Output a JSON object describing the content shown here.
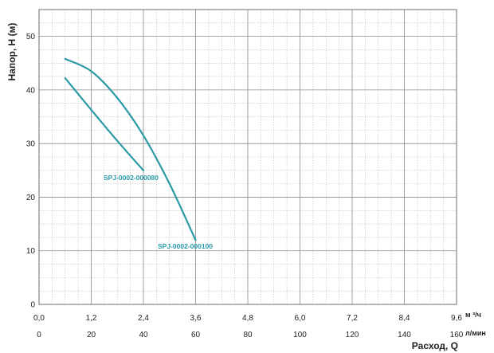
{
  "chart_data": {
    "type": "line",
    "ylabel": "Напор, Н (м)",
    "xlabel": "Расход, Q",
    "x_unit_primary": "м ³/ч",
    "x_unit_secondary": "л/мин",
    "xlim": [
      0,
      9.6
    ],
    "ylim": [
      0,
      55
    ],
    "x_ticks": [
      "0,0",
      "1,2",
      "2,4",
      "3,6",
      "4,8",
      "6,0",
      "7,2",
      "8,4",
      "9,6"
    ],
    "x_ticks_secondary": [
      "0",
      "20",
      "40",
      "60",
      "80",
      "100",
      "120",
      "140",
      "160"
    ],
    "y_ticks": [
      "0",
      "10",
      "20",
      "30",
      "40",
      "50"
    ],
    "grid": true,
    "series": [
      {
        "name": "SPJ-0002-000080",
        "color": "#2a9aa6",
        "x": [
          0.6,
          1.2,
          1.8,
          2.4
        ],
        "y": [
          42.2,
          36.3,
          30.5,
          25.0
        ]
      },
      {
        "name": "SPJ-0002-000100",
        "color": "#2a9aa6",
        "x": [
          0.6,
          1.2,
          1.8,
          2.4,
          3.0,
          3.6
        ],
        "y": [
          45.8,
          43.5,
          38.5,
          31.5,
          22.5,
          12.0
        ]
      }
    ]
  }
}
